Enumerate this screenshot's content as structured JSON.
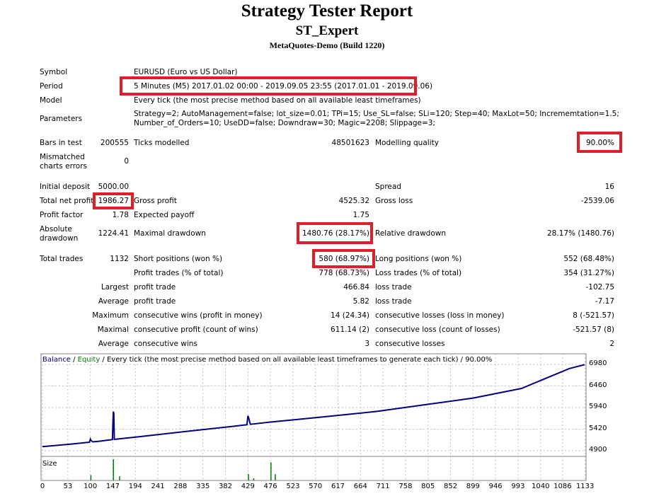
{
  "header": {
    "title": "Strategy Tester Report",
    "expert": "ST_Expert",
    "build": "MetaQuotes-Demo (Build 1220)"
  },
  "info": {
    "symbol_label": "Symbol",
    "symbol_value": "EURUSD (Euro vs US Dollar)",
    "period_label": "Period",
    "period_value": "5 Minutes (M5) 2017.01.02 00:00 - 2019.09.05 23:55 (2017.01.01 - 2019.09.06)",
    "model_label": "Model",
    "model_value": "Every tick (the most precise method based on all available least timeframes)",
    "parameters_label": "Parameters",
    "parameters_line1": "Strategy=2; AutoManagement=false; lot_size=0.01; TPi=15; Use_SL=false; SLi=120; Step=40; MaxLot=50; Incrememtation=1.5;",
    "parameters_line2": "Number_of_Orders=10; UseDD=false; Downdraw=30; Magic=2208; Slippage=3;"
  },
  "stats": {
    "bars_label": "Bars in test",
    "bars_value": "200555",
    "ticks_label": "Ticks modelled",
    "ticks_value": "48501623",
    "quality_label": "Modelling quality",
    "quality_value": "90.00%",
    "mismatch_label1": "Mismatched",
    "mismatch_label2": "charts errors",
    "mismatch_value": "0",
    "deposit_label": "Initial deposit",
    "deposit_value": "5000.00",
    "spread_label": "Spread",
    "spread_value": "16",
    "netprofit_label": "Total net profit",
    "netprofit_value": "1986.27",
    "grossprofit_label": "Gross profit",
    "grossprofit_value": "4525.32",
    "grossloss_label": "Gross loss",
    "grossloss_value": "-2539.06",
    "pf_label": "Profit factor",
    "pf_value": "1.78",
    "payoff_label": "Expected payoff",
    "payoff_value": "1.75",
    "absdd_label1": "Absolute",
    "absdd_label2": "drawdown",
    "absdd_value": "1224.41",
    "maxdd_label": "Maximal drawdown",
    "maxdd_value": "1480.76 (28.17%)",
    "reldd_label": "Relative drawdown",
    "reldd_value": "28.17% (1480.76)",
    "trades_label": "Total trades",
    "trades_value": "1132",
    "short_label": "Short positions (won %)",
    "short_value": "580 (68.97%)",
    "long_label": "Long positions (won %)",
    "long_value": "552 (68.48%)",
    "profittrades_label": "Profit trades (% of total)",
    "profittrades_value": "778 (68.73%)",
    "losstrades_label": "Loss trades (% of total)",
    "losstrades_value": "354 (31.27%)",
    "largest_label": "Largest",
    "largest_profit_label": "profit trade",
    "largest_profit_value": "466.84",
    "largest_loss_label": "loss trade",
    "largest_loss_value": "-102.75",
    "average_label": "Average",
    "average_profit_label": "profit trade",
    "average_profit_value": "5.82",
    "average_loss_label": "loss trade",
    "average_loss_value": "-7.17",
    "maximum_label": "Maximum",
    "max_wins_label": "consecutive wins (profit in money)",
    "max_wins_value": "14 (24.34)",
    "max_losses_label": "consecutive losses (loss in money)",
    "max_losses_value": "8 (-521.57)",
    "maximal_label": "Maximal",
    "maximal_profit_label": "consecutive profit (count of wins)",
    "maximal_profit_value": "611.14 (2)",
    "maximal_loss_label": "consecutive loss (count of losses)",
    "maximal_loss_value": "-521.57 (8)",
    "avg2_label": "Average",
    "avg_wins_label": "consecutive wins",
    "avg_wins_value": "3",
    "avg_losses_label": "consecutive losses",
    "avg_losses_value": "2"
  },
  "chart_data": {
    "type": "line",
    "legend": {
      "balance": "Balance",
      "sep1": " / ",
      "equity": "Equity",
      "rest": " / Every tick (the most precise method based on all available least timeframes to generate each tick) / 90.00%"
    },
    "colors": {
      "balance": "#000080",
      "equity": "#008000",
      "size": "#008000"
    },
    "ylim": [
      4900,
      6980
    ],
    "yticks": [
      "6980",
      "6460",
      "5940",
      "5420",
      "4900"
    ],
    "xlim": [
      0,
      1132
    ],
    "xticks": [
      "0",
      "53",
      "100",
      "147",
      "194",
      "241",
      "288",
      "335",
      "382",
      "429",
      "476",
      "523",
      "570",
      "617",
      "664",
      "711",
      "758",
      "805",
      "852",
      "899",
      "946",
      "993",
      "1040",
      "1086",
      "1133"
    ],
    "size_label": "Size",
    "balance": [
      [
        0,
        4999
      ],
      [
        60,
        5060
      ],
      [
        120,
        5130
      ],
      [
        150,
        5175
      ],
      [
        200,
        5235
      ],
      [
        300,
        5365
      ],
      [
        400,
        5490
      ],
      [
        429,
        5530
      ],
      [
        476,
        5590
      ],
      [
        520,
        5640
      ],
      [
        600,
        5730
      ],
      [
        700,
        5850
      ],
      [
        800,
        6010
      ],
      [
        900,
        6170
      ],
      [
        1000,
        6400
      ],
      [
        1100,
        6880
      ],
      [
        1132,
        6975
      ]
    ],
    "spikes": [
      [
        100,
        5180
      ],
      [
        148,
        5840
      ],
      [
        429,
        5740
      ]
    ],
    "size_bars": [
      [
        100,
        0.25
      ],
      [
        147,
        1.0
      ],
      [
        160,
        0.2
      ],
      [
        429,
        0.3
      ],
      [
        440,
        0.1
      ],
      [
        476,
        0.85
      ],
      [
        485,
        0.3
      ]
    ]
  }
}
